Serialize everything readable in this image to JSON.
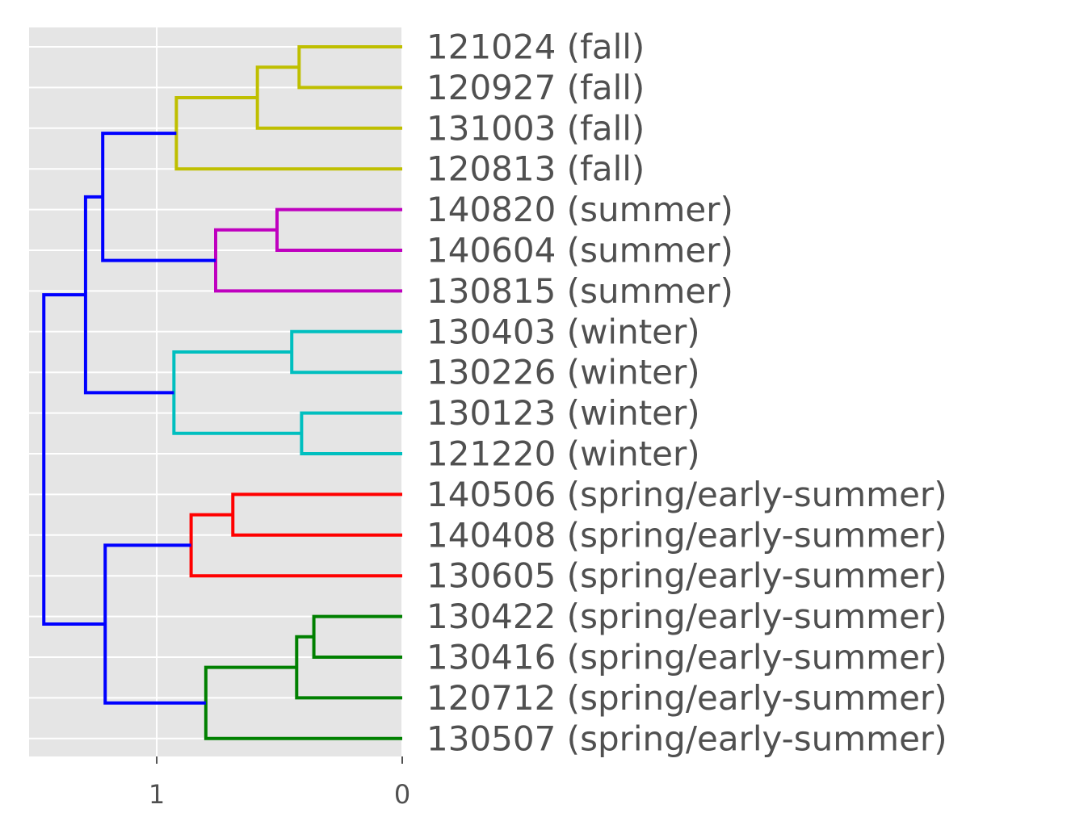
{
  "chart_data": {
    "type": "dendrogram",
    "orientation": "left",
    "xlim": [
      1.52,
      0
    ],
    "xticks": [
      {
        "value": 1,
        "label": "1"
      },
      {
        "value": 0,
        "label": "0"
      }
    ],
    "grid": true,
    "background_color": "#e5e5e5",
    "grid_color": "#ffffff",
    "leaves": [
      "121024 (fall)",
      "120927 (fall)",
      "131003 (fall)",
      "120813 (fall)",
      "140820 (summer)",
      "140604 (summer)",
      "130815 (summer)",
      "130403 (winter)",
      "130226 (winter)",
      "130123 (winter)",
      "121220 (winter)",
      "140506 (spring/early-summer)",
      "140408 (spring/early-summer)",
      "130605 (spring/early-summer)",
      "130422 (spring/early-summer)",
      "130416 (spring/early-summer)",
      "120712 (spring/early-summer)",
      "130507 (spring/early-summer)"
    ],
    "clusters": [
      {
        "label": "fall",
        "color": "#bfbf00"
      },
      {
        "label": "summer",
        "color": "#bf00bf"
      },
      {
        "label": "winter",
        "color": "#00bfbf"
      },
      {
        "label": "spring/early-summer A",
        "color": "#ff0000"
      },
      {
        "label": "spring/early-summer B",
        "color": "#008000"
      }
    ],
    "link_color_above_threshold": "#0000ff",
    "merges": [
      {
        "id": "m1",
        "left": 0,
        "right": 1,
        "distance": 0.42,
        "color": "#bfbf00"
      },
      {
        "id": "m2",
        "left": "m1",
        "right": 2,
        "distance": 0.59,
        "color": "#bfbf00"
      },
      {
        "id": "m3",
        "left": "m2",
        "right": 3,
        "distance": 0.92,
        "color": "#bfbf00"
      },
      {
        "id": "m4",
        "left": 4,
        "right": 5,
        "distance": 0.51,
        "color": "#bf00bf"
      },
      {
        "id": "m5",
        "left": "m4",
        "right": 6,
        "distance": 0.76,
        "color": "#bf00bf"
      },
      {
        "id": "m6",
        "left": 7,
        "right": 8,
        "distance": 0.45,
        "color": "#00bfbf"
      },
      {
        "id": "m7",
        "left": 9,
        "right": 10,
        "distance": 0.41,
        "color": "#00bfbf"
      },
      {
        "id": "m8",
        "left": "m6",
        "right": "m7",
        "distance": 0.93,
        "color": "#00bfbf"
      },
      {
        "id": "m9",
        "left": 11,
        "right": 12,
        "distance": 0.69,
        "color": "#ff0000"
      },
      {
        "id": "m10",
        "left": "m9",
        "right": 13,
        "distance": 0.86,
        "color": "#ff0000"
      },
      {
        "id": "m11",
        "left": 14,
        "right": 15,
        "distance": 0.36,
        "color": "#008000"
      },
      {
        "id": "m12",
        "left": "m11",
        "right": 16,
        "distance": 0.43,
        "color": "#008000"
      },
      {
        "id": "m13",
        "left": "m12",
        "right": 17,
        "distance": 0.8,
        "color": "#008000"
      },
      {
        "id": "m14",
        "left": "m3",
        "right": "m5",
        "distance": 1.22,
        "color": "#0000ff"
      },
      {
        "id": "m15",
        "left": "m14",
        "right": "m8",
        "distance": 1.29,
        "color": "#0000ff"
      },
      {
        "id": "m16",
        "left": "m10",
        "right": "m13",
        "distance": 1.21,
        "color": "#0000ff"
      },
      {
        "id": "m17",
        "left": "m15",
        "right": "m16",
        "distance": 1.46,
        "color": "#0000ff"
      }
    ]
  }
}
